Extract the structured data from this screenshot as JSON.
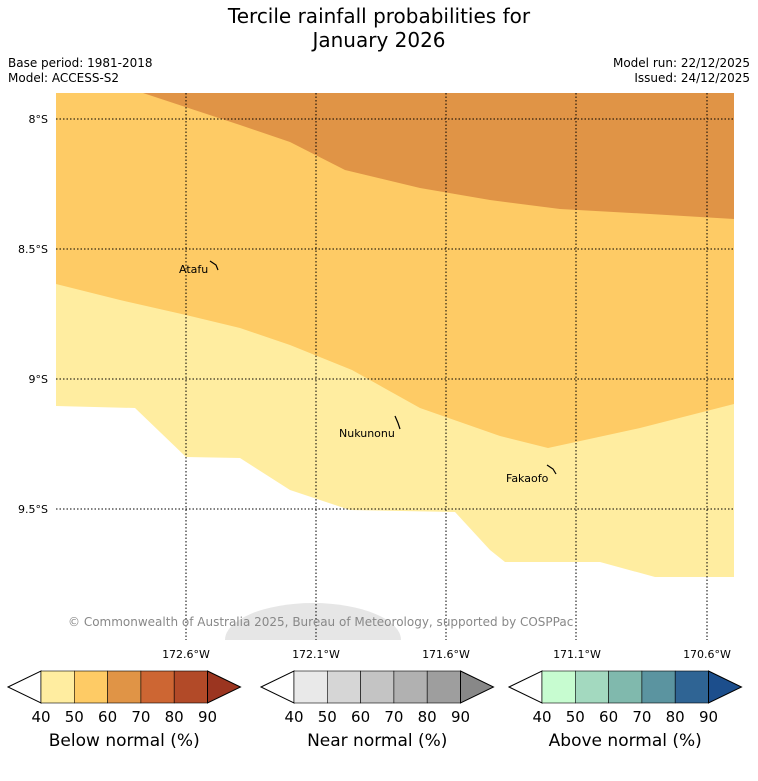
{
  "title": {
    "line1": "Tercile rainfall probabilities for",
    "line2": "January 2026"
  },
  "meta": {
    "base_period": "Base period: 1981-2018",
    "model": "Model: ACCESS-S2",
    "model_run": "Model run: 22/12/2025",
    "issued": "Issued: 24/12/2025"
  },
  "map": {
    "lat_labels": [
      "8°S",
      "8.5°S",
      "9°S",
      "9.5°S"
    ],
    "lon_labels_row1": [
      "172.6°W",
      "171.1°W",
      "170.6°W"
    ],
    "lon_labels_row2": [
      "172.1°W",
      "171.6°W"
    ],
    "places": [
      "Atafu",
      "Nukunonu",
      "Fakaofo"
    ],
    "copyright": "© Commonwealth of Australia 2025, Bureau of Meteorology, supported by COSPPac",
    "colors": {
      "bn40": "#ffeda0",
      "bn50": "#fecb65",
      "bn60": "#e09446"
    }
  },
  "colorbars": [
    {
      "label": "Below normal (%)",
      "ticks": [
        "40",
        "50",
        "60",
        "70",
        "80",
        "90"
      ],
      "colors": [
        "#ffffff",
        "#ffeda0",
        "#fecb65",
        "#e09446",
        "#cd6633",
        "#b24a28",
        "#9b3520"
      ]
    },
    {
      "label": "Near normal (%)",
      "ticks": [
        "40",
        "50",
        "60",
        "70",
        "80",
        "90"
      ],
      "colors": [
        "#ffffff",
        "#e9e9e9",
        "#d6d6d6",
        "#c4c4c4",
        "#b1b1b1",
        "#9e9e9e",
        "#888888"
      ]
    },
    {
      "label": "Above normal (%)",
      "ticks": [
        "40",
        "50",
        "60",
        "70",
        "80",
        "90"
      ],
      "colors": [
        "#ffffff",
        "#c7fcd0",
        "#a3d9bf",
        "#80b9ad",
        "#5b94a0",
        "#2f6494",
        "#1c4e8c"
      ]
    }
  ]
}
